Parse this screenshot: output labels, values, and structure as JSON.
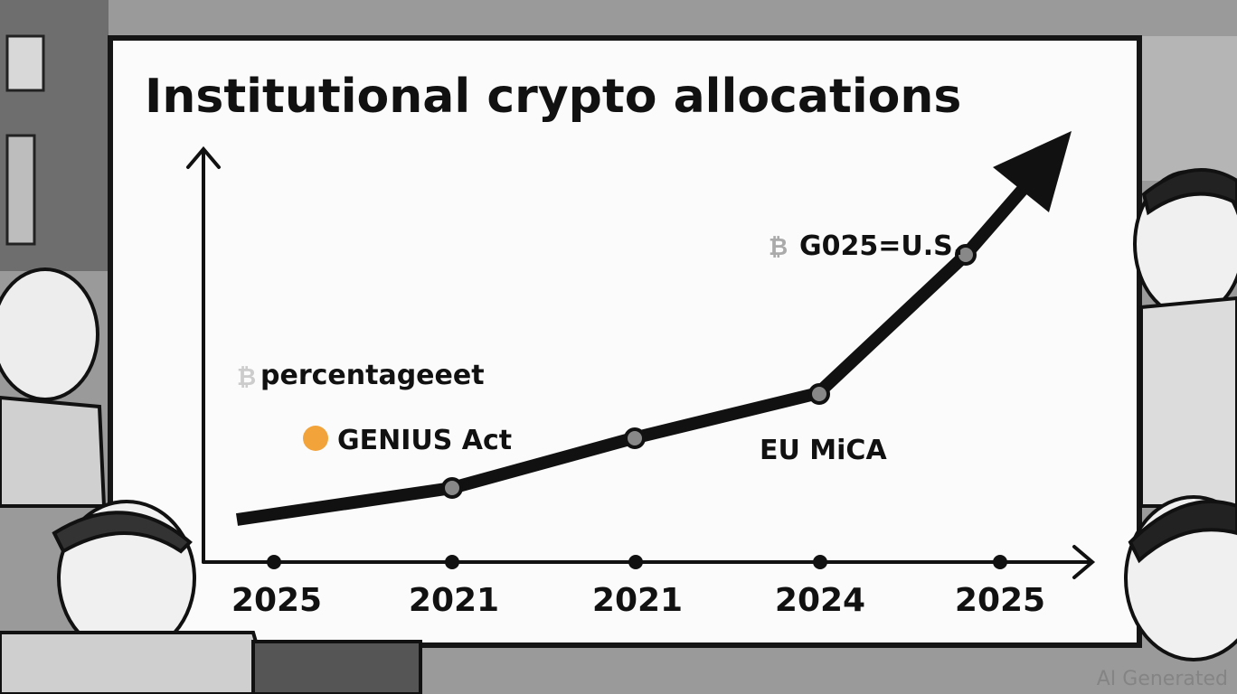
{
  "title": "Institutional crypto allocations",
  "annotations": [
    "percentageeet",
    "GENIUS Act",
    "EU MiCA",
    "G025=U.S."
  ],
  "x_labels": [
    "2025",
    "2021",
    "2021",
    "2024",
    "2025"
  ],
  "watermark": "AI Generated"
}
